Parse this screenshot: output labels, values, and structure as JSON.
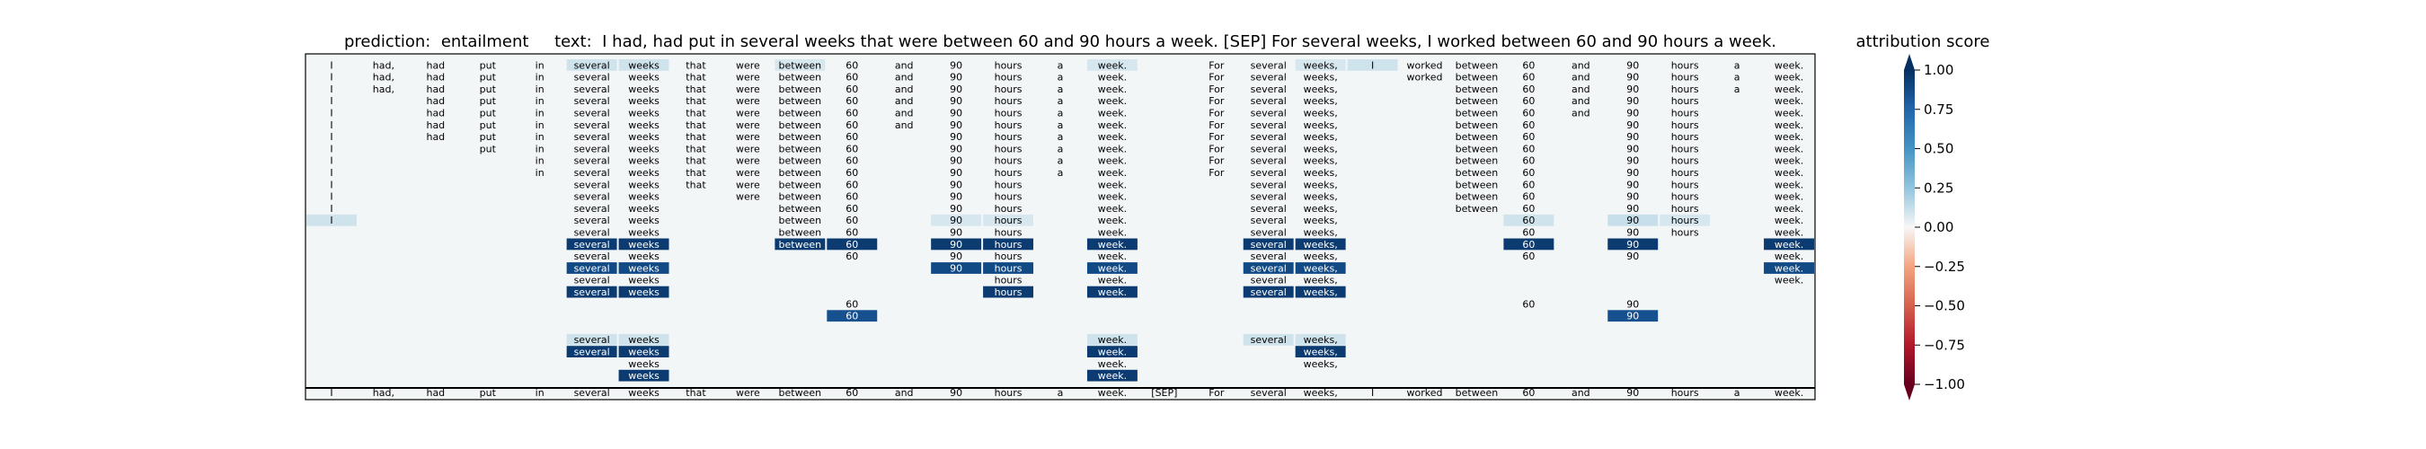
{
  "title": {
    "prediction_label": "prediction:",
    "prediction_value": "entailment",
    "text_label": "text:",
    "text_value": "I had, had put in several weeks that were between 60 and 90 hours a week. [SEP] For several weeks, I worked between 60 and 90 hours a week."
  },
  "colorbar": {
    "title": "attribution score",
    "ticks": [
      "1.00",
      "0.75",
      "0.50",
      "0.25",
      "0.00",
      "−0.25",
      "−0.50",
      "−0.75",
      "−1.00"
    ],
    "tick_values": [
      1.0,
      0.75,
      0.5,
      0.25,
      0.0,
      -0.25,
      -0.5,
      -0.75,
      -1.0
    ],
    "range": [
      -1.0,
      1.0
    ],
    "colormap": "RdBu",
    "colors": {
      "neg": "#67001f",
      "zero": "#f7f7f7",
      "pos": "#053061"
    }
  },
  "chart_data": {
    "type": "heatmap",
    "tokens": [
      "I",
      "had,",
      "had",
      "put",
      "in",
      "several",
      "weeks",
      "that",
      "were",
      "between",
      "60",
      "and",
      "90",
      "hours",
      "a",
      "week.",
      "[SEP]",
      "For",
      "several",
      "weeks,",
      "I",
      "worked",
      "between",
      "60",
      "and",
      "90",
      "hours",
      "a",
      "week."
    ],
    "rows": [
      {
        "t": [
          0,
          1,
          2,
          3,
          4,
          5,
          6,
          7,
          8,
          9,
          10,
          11,
          12,
          13,
          14,
          15,
          17,
          18,
          19,
          20,
          21,
          22,
          23,
          24,
          25,
          26,
          27,
          28
        ],
        "s": {
          "5": 0.1,
          "6": 0.1,
          "9": 0.08,
          "15": 0.08,
          "19": 0.08,
          "20": 0.1
        }
      },
      {
        "t": [
          0,
          1,
          2,
          3,
          4,
          5,
          6,
          7,
          8,
          9,
          10,
          11,
          12,
          13,
          14,
          15,
          17,
          18,
          19,
          21,
          22,
          23,
          24,
          25,
          26,
          27,
          28
        ],
        "s": {}
      },
      {
        "t": [
          0,
          1,
          2,
          3,
          4,
          5,
          6,
          7,
          8,
          9,
          10,
          11,
          12,
          13,
          14,
          15,
          17,
          18,
          19,
          22,
          23,
          24,
          25,
          26,
          27,
          28
        ],
        "s": {}
      },
      {
        "t": [
          0,
          2,
          3,
          4,
          5,
          6,
          7,
          8,
          9,
          10,
          11,
          12,
          13,
          14,
          15,
          17,
          18,
          19,
          22,
          23,
          24,
          25,
          26,
          28
        ],
        "s": {}
      },
      {
        "t": [
          0,
          2,
          3,
          4,
          5,
          6,
          7,
          8,
          9,
          10,
          11,
          12,
          13,
          14,
          15,
          17,
          18,
          19,
          22,
          23,
          24,
          25,
          26,
          28
        ],
        "s": {}
      },
      {
        "t": [
          0,
          2,
          3,
          4,
          5,
          6,
          7,
          8,
          9,
          10,
          11,
          12,
          13,
          14,
          15,
          17,
          18,
          19,
          22,
          23,
          25,
          26,
          28
        ],
        "s": {}
      },
      {
        "t": [
          0,
          2,
          3,
          4,
          5,
          6,
          7,
          8,
          9,
          10,
          12,
          13,
          14,
          15,
          17,
          18,
          19,
          22,
          23,
          25,
          26,
          28
        ],
        "s": {}
      },
      {
        "t": [
          0,
          3,
          4,
          5,
          6,
          7,
          8,
          9,
          10,
          12,
          13,
          14,
          15,
          17,
          18,
          19,
          22,
          23,
          25,
          26,
          28
        ],
        "s": {}
      },
      {
        "t": [
          0,
          4,
          5,
          6,
          7,
          8,
          9,
          10,
          12,
          13,
          14,
          15,
          17,
          18,
          19,
          22,
          23,
          25,
          26,
          28
        ],
        "s": {}
      },
      {
        "t": [
          0,
          4,
          5,
          6,
          7,
          8,
          9,
          10,
          12,
          13,
          14,
          15,
          17,
          18,
          19,
          22,
          23,
          25,
          26,
          28
        ],
        "s": {}
      },
      {
        "t": [
          0,
          5,
          6,
          7,
          8,
          9,
          10,
          12,
          13,
          15,
          18,
          19,
          22,
          23,
          25,
          26,
          28
        ],
        "s": {}
      },
      {
        "t": [
          0,
          5,
          6,
          8,
          9,
          10,
          12,
          13,
          15,
          18,
          19,
          22,
          23,
          25,
          26,
          28
        ],
        "s": {}
      },
      {
        "t": [
          0,
          5,
          6,
          9,
          10,
          12,
          13,
          15,
          18,
          19,
          22,
          23,
          25,
          26,
          28
        ],
        "s": {}
      },
      {
        "t": [
          0,
          5,
          6,
          9,
          10,
          12,
          13,
          15,
          18,
          19,
          23,
          25,
          26,
          28
        ],
        "s": {
          "0": 0.1,
          "12": 0.08,
          "13": 0.08,
          "23": 0.1,
          "25": 0.12,
          "26": 0.08
        }
      },
      {
        "t": [
          5,
          6,
          9,
          10,
          12,
          13,
          15,
          18,
          19,
          23,
          25,
          26,
          28
        ],
        "s": {}
      },
      {
        "t": [
          5,
          6,
          9,
          10,
          12,
          13,
          15,
          18,
          19,
          23,
          25,
          28
        ],
        "s": {
          "5": 0.95,
          "6": 0.95,
          "9": 0.95,
          "10": 0.95,
          "12": 0.95,
          "13": 0.95,
          "15": 0.95,
          "18": 0.95,
          "19": 0.95,
          "23": 0.95,
          "25": 0.95,
          "28": 0.95
        }
      },
      {
        "t": [
          5,
          6,
          10,
          12,
          13,
          15,
          18,
          19,
          23,
          25,
          28
        ],
        "s": {}
      },
      {
        "t": [
          5,
          6,
          12,
          13,
          15,
          18,
          19,
          28
        ],
        "s": {
          "5": 0.88,
          "6": 0.88,
          "12": 0.88,
          "13": 0.88,
          "15": 0.88,
          "18": 0.88,
          "19": 0.88,
          "28": 0.88
        }
      },
      {
        "t": [
          5,
          6,
          13,
          15,
          18,
          19,
          28
        ],
        "s": {}
      },
      {
        "t": [
          5,
          6,
          13,
          15,
          18,
          19
        ],
        "s": {
          "5": 0.95,
          "6": 0.95,
          "13": 0.95,
          "15": 0.95,
          "18": 0.95,
          "19": 0.95
        }
      },
      {
        "t": [
          10,
          23,
          25
        ],
        "s": {}
      },
      {
        "t": [
          10,
          25
        ],
        "s": {
          "10": 0.85,
          "25": 0.85
        }
      },
      {
        "t": [],
        "s": {}
      },
      {
        "t": [
          5,
          6,
          15,
          18,
          19
        ],
        "s": {
          "5": 0.1,
          "6": 0.1,
          "15": 0.1,
          "18": 0.1,
          "19": 0.1
        }
      },
      {
        "t": [
          5,
          6,
          15,
          19
        ],
        "s": {
          "5": 0.95,
          "6": 0.95,
          "15": 0.95,
          "19": 0.95
        }
      },
      {
        "t": [
          6,
          15,
          19
        ],
        "s": {}
      },
      {
        "t": [
          6,
          15
        ],
        "s": {
          "6": 0.95,
          "15": 0.95
        }
      }
    ],
    "base_row": [
      0,
      1,
      2,
      3,
      4,
      5,
      6,
      7,
      8,
      9,
      10,
      11,
      12,
      13,
      14,
      15,
      16,
      17,
      18,
      19,
      20,
      21,
      22,
      23,
      24,
      25,
      26,
      27,
      28
    ],
    "cells": []
  }
}
